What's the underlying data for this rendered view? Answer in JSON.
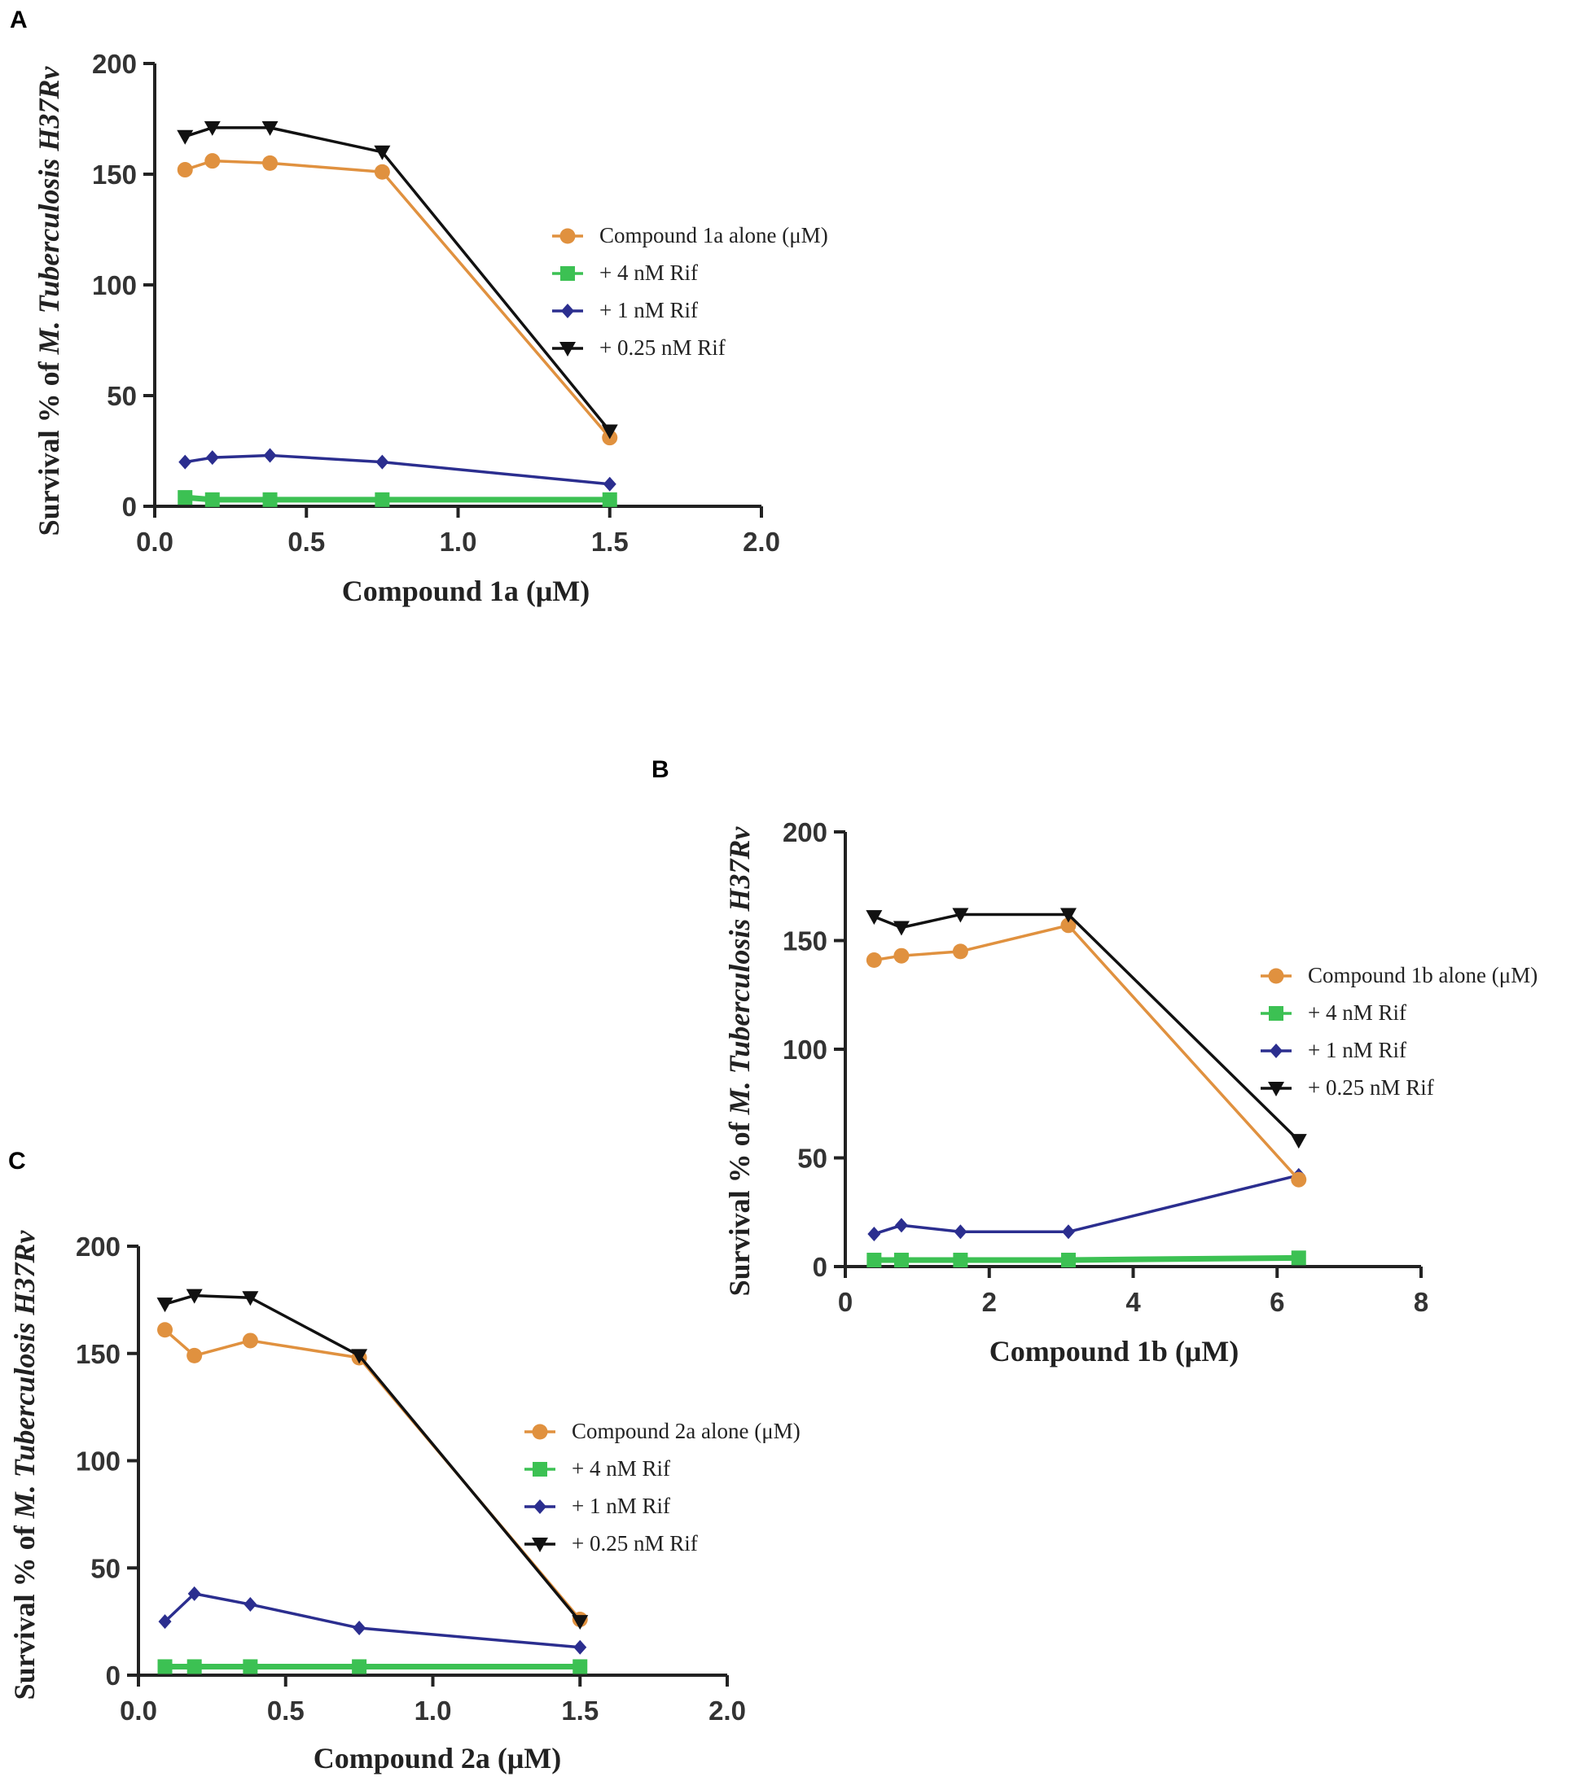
{
  "chart_data": [
    {
      "panel": "A",
      "type": "line",
      "xlabel": "Compound 1a (μM)",
      "ylabel_prefix": "Survival % of ",
      "ylabel_italic": "M. Tuberculosis H37Rv",
      "xlim": [
        0,
        2
      ],
      "ylim": [
        0,
        200
      ],
      "xticks": [
        "0.0",
        "0.5",
        "1.0",
        "1.5",
        "2.0"
      ],
      "yticks": [
        "0",
        "50",
        "100",
        "150",
        "200"
      ],
      "legend_position": "right",
      "series": [
        {
          "name": "Compound 1a alone (μM)",
          "marker": "circle",
          "color": "#e0913f",
          "x": [
            0.1,
            0.19,
            0.38,
            0.75,
            1.5
          ],
          "y": [
            152,
            156,
            155,
            151,
            31
          ]
        },
        {
          "name": "+ 4 nM Rif",
          "marker": "square",
          "color": "#3cc153",
          "x": [
            0.1,
            0.19,
            0.38,
            0.75,
            1.5
          ],
          "y": [
            4,
            3,
            3,
            3,
            3
          ]
        },
        {
          "name": "+ 1 nM Rif",
          "marker": "diamond",
          "color": "#2b2e8f",
          "x": [
            0.1,
            0.19,
            0.38,
            0.75,
            1.5
          ],
          "y": [
            20,
            22,
            23,
            20,
            10
          ]
        },
        {
          "name": "+ 0.25 nM Rif",
          "marker": "triangle-down",
          "color": "#111111",
          "x": [
            0.1,
            0.19,
            0.38,
            0.75,
            1.5
          ],
          "y": [
            167,
            171,
            171,
            160,
            34
          ]
        }
      ]
    },
    {
      "panel": "B",
      "type": "line",
      "xlabel": "Compound 1b (μM)",
      "ylabel_prefix": "Survival % of ",
      "ylabel_italic": "M. Tuberculosis H37Rv",
      "xlim": [
        0,
        8
      ],
      "ylim": [
        0,
        200
      ],
      "xticks": [
        "0",
        "2",
        "4",
        "6",
        "8"
      ],
      "yticks": [
        "0",
        "50",
        "100",
        "150",
        "200"
      ],
      "legend_position": "right",
      "series": [
        {
          "name": "Compound 1b alone (μM)",
          "marker": "circle",
          "color": "#e0913f",
          "x": [
            0.4,
            0.78,
            1.6,
            3.1,
            6.3
          ],
          "y": [
            141,
            143,
            145,
            157,
            40
          ]
        },
        {
          "name": "+ 4 nM Rif",
          "marker": "square",
          "color": "#3cc153",
          "x": [
            0.4,
            0.78,
            1.6,
            3.1,
            6.3
          ],
          "y": [
            3,
            3,
            3,
            3,
            4
          ]
        },
        {
          "name": "+ 1 nM Rif",
          "marker": "diamond",
          "color": "#2b2e8f",
          "x": [
            0.4,
            0.78,
            1.6,
            3.1,
            6.3
          ],
          "y": [
            15,
            19,
            16,
            16,
            42
          ]
        },
        {
          "name": "+ 0.25 nM Rif",
          "marker": "triangle-down",
          "color": "#111111",
          "x": [
            0.4,
            0.78,
            1.6,
            3.1,
            6.3
          ],
          "y": [
            161,
            156,
            162,
            162,
            58
          ]
        }
      ]
    },
    {
      "panel": "C",
      "type": "line",
      "xlabel": "Compound 2a (μM)",
      "ylabel_prefix": "Survival % of ",
      "ylabel_italic": "M. Tuberculosis H37Rv",
      "xlim": [
        0,
        2
      ],
      "ylim": [
        0,
        200
      ],
      "xticks": [
        "0.0",
        "0.5",
        "1.0",
        "1.5",
        "2.0"
      ],
      "yticks": [
        "0",
        "50",
        "100",
        "150",
        "200"
      ],
      "legend_position": "right",
      "series": [
        {
          "name": "Compound 2a alone (μM)",
          "marker": "circle",
          "color": "#e0913f",
          "x": [
            0.09,
            0.19,
            0.38,
            0.75,
            1.5
          ],
          "y": [
            161,
            149,
            156,
            148,
            26
          ]
        },
        {
          "name": "+ 4 nM Rif",
          "marker": "square",
          "color": "#3cc153",
          "x": [
            0.09,
            0.19,
            0.38,
            0.75,
            1.5
          ],
          "y": [
            4,
            4,
            4,
            4,
            4
          ]
        },
        {
          "name": "+ 1 nM Rif",
          "marker": "diamond",
          "color": "#2b2e8f",
          "x": [
            0.09,
            0.19,
            0.38,
            0.75,
            1.5
          ],
          "y": [
            25,
            38,
            33,
            22,
            13
          ]
        },
        {
          "name": "+ 0.25 nM Rif",
          "marker": "triangle-down",
          "color": "#111111",
          "x": [
            0.09,
            0.19,
            0.38,
            0.75,
            1.5
          ],
          "y": [
            173,
            177,
            176,
            149,
            25
          ]
        }
      ]
    }
  ]
}
